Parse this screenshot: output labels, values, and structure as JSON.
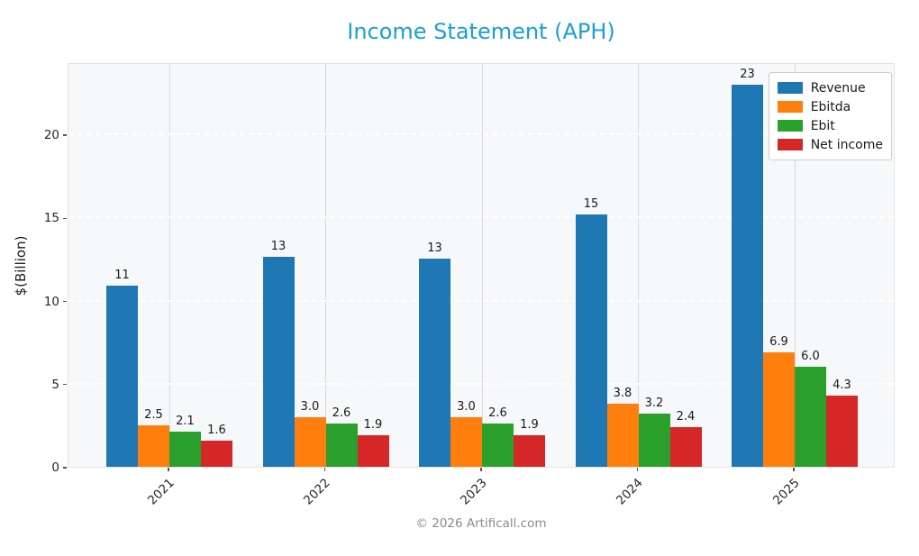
{
  "title": "Income Statement (APH)",
  "title_color": "#1a9fd4",
  "footer": {
    "text": "© 2026 Artificall.com",
    "color": "#8b8b8b"
  },
  "chart_data": {
    "type": "bar",
    "title": "Income Statement (APH)",
    "xlabel": "",
    "ylabel": "$(Billion)",
    "categories": [
      "2021",
      "2022",
      "2023",
      "2024",
      "2025"
    ],
    "series": [
      {
        "name": "Revenue",
        "color": "#1f77b4",
        "values": [
          10.9,
          12.65,
          12.55,
          15.2,
          23.0
        ],
        "labels": [
          "11",
          "13",
          "13",
          "15",
          "23"
        ]
      },
      {
        "name": "Ebitda",
        "color": "#ff7f0e",
        "values": [
          2.5,
          3.0,
          3.0,
          3.8,
          6.9
        ],
        "labels": [
          "2.5",
          "3.0",
          "3.0",
          "3.8",
          "6.9"
        ]
      },
      {
        "name": "Ebit",
        "color": "#2ca02c",
        "values": [
          2.1,
          2.6,
          2.6,
          3.2,
          6.0
        ],
        "labels": [
          "2.1",
          "2.6",
          "2.6",
          "3.2",
          "6.0"
        ]
      },
      {
        "name": "Net income",
        "color": "#d62728",
        "values": [
          1.6,
          1.9,
          1.9,
          2.4,
          4.3
        ],
        "labels": [
          "1.6",
          "1.9",
          "1.9",
          "2.4",
          "4.3"
        ]
      }
    ],
    "yticks": [
      0,
      5,
      10,
      15,
      20
    ],
    "ylim": [
      0,
      24.34
    ],
    "grid": true,
    "grid_horizontal_style": "dashed-white",
    "grid_vertical_style": "solid-gray",
    "plot_background": "#f7f8f9",
    "legend_position": "upper right"
  }
}
